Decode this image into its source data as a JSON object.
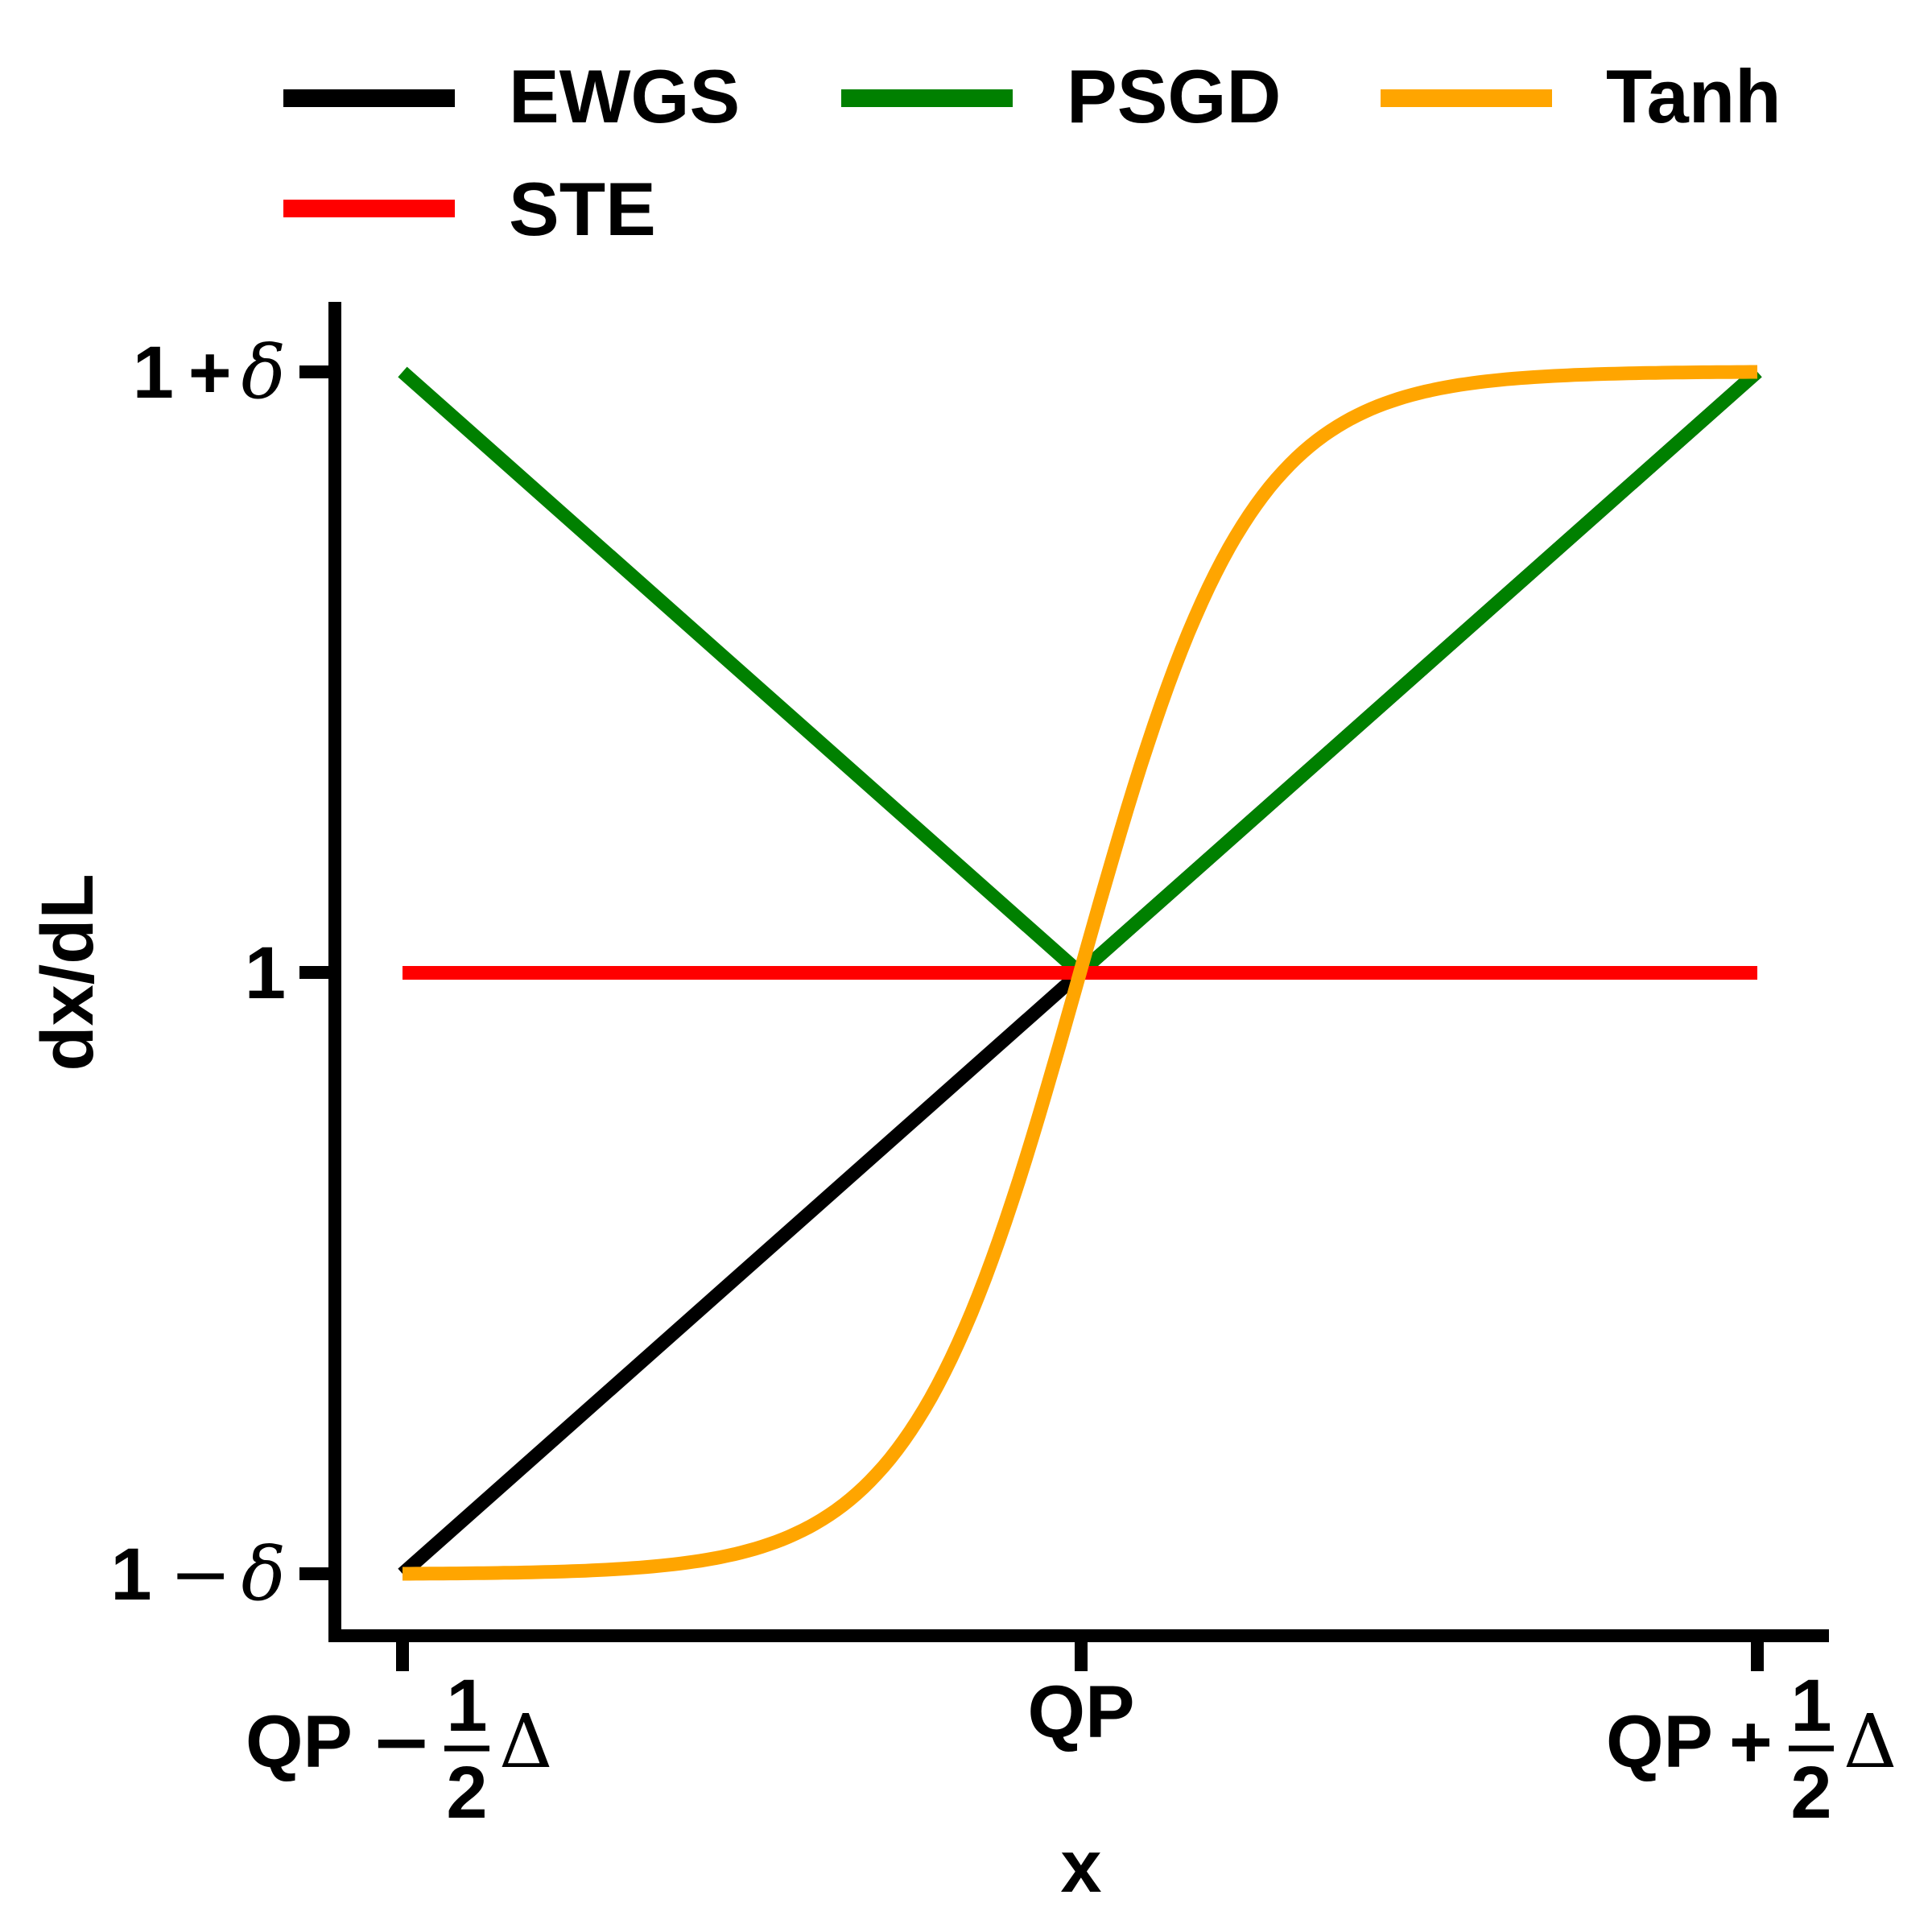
{
  "chart_data": {
    "type": "line",
    "xlabel": "x",
    "ylabel": "dx/dL",
    "x_ticks": [
      {
        "value": -0.5,
        "prefix": "QP",
        "operator": "−",
        "frac_num": "1",
        "frac_den": "2",
        "suffix": "Δ"
      },
      {
        "value": 0,
        "prefix": "QP",
        "operator": "",
        "frac_num": "",
        "frac_den": "",
        "suffix": ""
      },
      {
        "value": 0.5,
        "prefix": "QP",
        "operator": "+",
        "frac_num": "1",
        "frac_den": "2",
        "suffix": "Δ"
      }
    ],
    "y_ticks": [
      {
        "value": -1,
        "base": "1",
        "operator": "−",
        "symbol": "δ"
      },
      {
        "value": 0,
        "base": "1",
        "operator": "",
        "symbol": ""
      },
      {
        "value": 1,
        "base": "1",
        "operator": "+",
        "symbol": "δ"
      }
    ],
    "xlim": [
      -0.5,
      0.5
    ],
    "ylim": [
      -1,
      1
    ],
    "grid": false,
    "legend_position": "top",
    "series": [
      {
        "name": "EWGS",
        "color": "#000000",
        "x": [
          -0.5,
          0.5
        ],
        "y": [
          -1,
          1
        ]
      },
      {
        "name": "PSGD",
        "color": "#008000",
        "x": [
          -0.5,
          0,
          0.5
        ],
        "y": [
          1,
          0,
          1
        ]
      },
      {
        "name": "Tanh",
        "color": "#ffa500",
        "function": "tanh",
        "steepness": 8,
        "x": [
          -0.5,
          0.5
        ],
        "y": [
          -1,
          1
        ]
      },
      {
        "name": "STE",
        "color": "#ff0000",
        "x": [
          -0.5,
          0.5
        ],
        "y": [
          0,
          0
        ]
      }
    ]
  }
}
